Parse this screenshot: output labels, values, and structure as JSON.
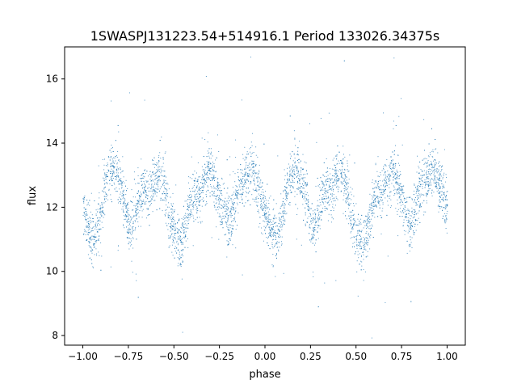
{
  "chart_data": {
    "type": "scatter",
    "title": "1SWASPJ131223.54+514916.1 Period 133026.34375s",
    "xlabel": "phase",
    "ylabel": "flux",
    "xlim": [
      -1.1,
      1.1
    ],
    "ylim": [
      7.7,
      17.0
    ],
    "grid": false,
    "legend": "none",
    "x_ticks": [
      -1.0,
      -0.75,
      -0.5,
      -0.25,
      0.0,
      0.25,
      0.5,
      0.75,
      1.0
    ],
    "x_tick_labels": [
      "−1.00",
      "−0.75",
      "−0.50",
      "−0.25",
      "0.00",
      "0.25",
      "0.50",
      "0.75",
      "1.00"
    ],
    "y_ticks": [
      8,
      10,
      12,
      14,
      16
    ],
    "y_tick_labels": [
      "8",
      "10",
      "12",
      "14",
      "16"
    ],
    "point_color": "#1f77b4",
    "series": [
      {
        "description_points": "phase-folded light curve, repeated twice over phase -1..1",
        "points": [
          [
            -1.0,
            12.0
          ],
          [
            -0.98,
            11.5
          ],
          [
            -0.96,
            11.2
          ],
          [
            -0.94,
            11.0
          ],
          [
            -0.92,
            11.3
          ],
          [
            -0.9,
            11.9
          ],
          [
            -0.88,
            12.6
          ],
          [
            -0.86,
            13.0
          ],
          [
            -0.84,
            13.2
          ],
          [
            -0.82,
            13.1
          ],
          [
            -0.8,
            12.8
          ],
          [
            -0.78,
            12.3
          ],
          [
            -0.76,
            11.8
          ],
          [
            -0.74,
            11.3
          ],
          [
            -0.72,
            11.6
          ],
          [
            -0.7,
            12.1
          ],
          [
            -0.68,
            12.5
          ],
          [
            -0.66,
            12.6
          ],
          [
            -0.64,
            12.4
          ],
          [
            -0.62,
            12.7
          ],
          [
            -0.6,
            13.0
          ],
          [
            -0.58,
            13.1
          ],
          [
            -0.56,
            12.8
          ],
          [
            -0.54,
            12.2
          ],
          [
            -0.52,
            11.6
          ],
          [
            -0.5,
            11.2
          ],
          [
            -0.48,
            11.0
          ],
          [
            -0.46,
            10.8
          ],
          [
            -0.44,
            11.3
          ],
          [
            -0.42,
            11.9
          ],
          [
            -0.4,
            12.3
          ],
          [
            -0.38,
            12.5
          ],
          [
            -0.36,
            12.4
          ],
          [
            -0.34,
            12.7
          ],
          [
            -0.32,
            13.0
          ],
          [
            -0.3,
            13.2
          ],
          [
            -0.28,
            12.8
          ],
          [
            -0.26,
            12.4
          ],
          [
            -0.24,
            12.1
          ],
          [
            -0.22,
            11.8
          ],
          [
            -0.2,
            11.6
          ],
          [
            -0.18,
            11.9
          ],
          [
            -0.16,
            12.3
          ],
          [
            -0.14,
            12.6
          ],
          [
            -0.12,
            12.8
          ],
          [
            -0.1,
            13.0
          ],
          [
            -0.08,
            13.2
          ],
          [
            -0.06,
            13.0
          ],
          [
            -0.04,
            12.6
          ],
          [
            -0.02,
            12.2
          ],
          [
            0.0,
            12.0
          ],
          [
            0.02,
            11.5
          ],
          [
            0.04,
            11.2
          ],
          [
            0.06,
            11.0
          ],
          [
            0.08,
            11.3
          ],
          [
            0.1,
            11.9
          ],
          [
            0.12,
            12.6
          ],
          [
            0.14,
            13.0
          ],
          [
            0.16,
            13.2
          ],
          [
            0.18,
            13.1
          ],
          [
            0.2,
            12.8
          ],
          [
            0.22,
            12.3
          ],
          [
            0.24,
            11.8
          ],
          [
            0.26,
            11.3
          ],
          [
            0.28,
            11.6
          ],
          [
            0.3,
            12.1
          ],
          [
            0.32,
            12.5
          ],
          [
            0.34,
            12.6
          ],
          [
            0.36,
            12.4
          ],
          [
            0.38,
            12.7
          ],
          [
            0.4,
            13.0
          ],
          [
            0.42,
            13.1
          ],
          [
            0.44,
            12.8
          ],
          [
            0.46,
            12.2
          ],
          [
            0.48,
            11.6
          ],
          [
            0.5,
            11.2
          ],
          [
            0.52,
            11.0
          ],
          [
            0.54,
            10.8
          ],
          [
            0.56,
            11.3
          ],
          [
            0.58,
            11.9
          ],
          [
            0.6,
            12.3
          ],
          [
            0.62,
            12.5
          ],
          [
            0.64,
            12.4
          ],
          [
            0.66,
            12.7
          ],
          [
            0.68,
            13.0
          ],
          [
            0.7,
            13.2
          ],
          [
            0.72,
            12.8
          ],
          [
            0.74,
            12.4
          ],
          [
            0.76,
            12.1
          ],
          [
            0.78,
            11.8
          ],
          [
            0.8,
            11.6
          ],
          [
            0.82,
            11.9
          ],
          [
            0.84,
            12.3
          ],
          [
            0.86,
            12.6
          ],
          [
            0.88,
            12.8
          ],
          [
            0.9,
            13.0
          ],
          [
            0.92,
            13.2
          ],
          [
            0.94,
            13.0
          ],
          [
            0.96,
            12.6
          ],
          [
            0.98,
            12.2
          ],
          [
            1.0,
            12.0
          ]
        ]
      }
    ]
  }
}
